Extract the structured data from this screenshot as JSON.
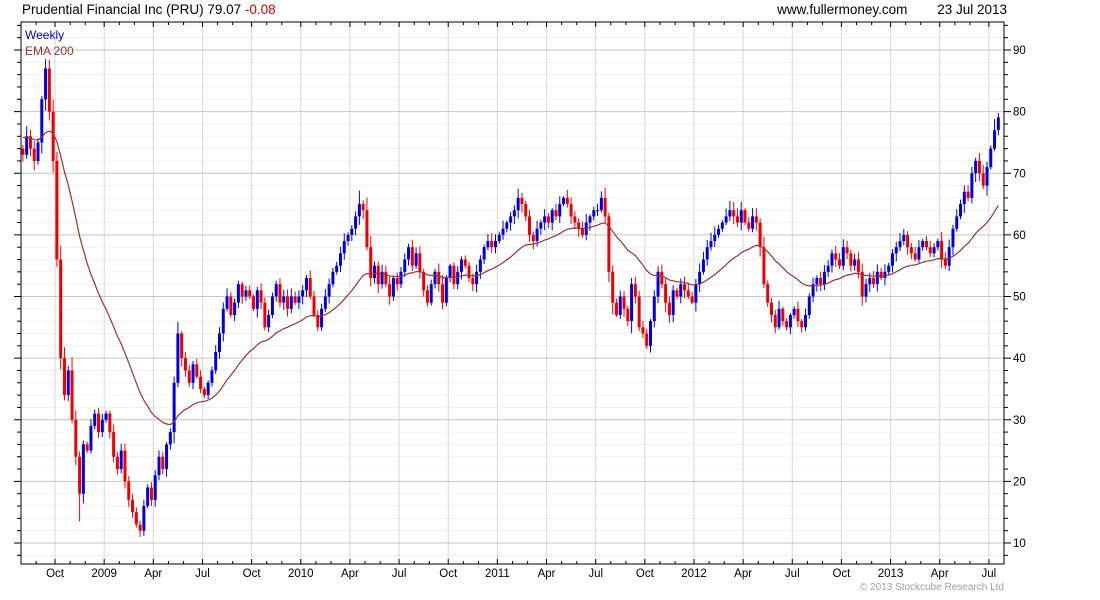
{
  "header": {
    "title": "Prudential Financial Inc (PRU)",
    "price": "79.07",
    "change": "-0.08",
    "site": "www.fullermoney.com",
    "date": "23 Jul 2013"
  },
  "footer": {
    "copyright": "© 2013 Stockcube Research Ltd"
  },
  "colors": {
    "up": "#0000dd",
    "down": "#ee0000",
    "ema": "#993333",
    "legend_weekly": "#0000cc",
    "negative_change": "#cc0000",
    "axis": "#000000",
    "grid_minor": "#efefef",
    "grid_major": "#c4c4c4",
    "grid_vertical": "#d8d8d8",
    "copyright_gray": "#9f9f9f"
  },
  "chart_data": {
    "type": "candlestick",
    "title": "Prudential Financial Inc (PRU) 79.07 -0.08",
    "timeframe_label": "Weekly",
    "ema_label": "EMA 200",
    "ema_period_weeks": 29,
    "ema_seed": 76,
    "weeks_total": 259,
    "first_open": 74,
    "y_axis": {
      "side": "right",
      "labels": [
        10,
        20,
        30,
        40,
        50,
        60,
        70,
        80,
        90
      ],
      "minor_step": 2,
      "top_value": 94.5,
      "bottom_value": 6.6
    },
    "x_axis": {
      "labels": [
        {
          "text": "Oct",
          "week": 9
        },
        {
          "text": "2009",
          "week": 22
        },
        {
          "text": "Apr",
          "week": 35
        },
        {
          "text": "Jul",
          "week": 48
        },
        {
          "text": "Oct",
          "week": 61
        },
        {
          "text": "2010",
          "week": 74
        },
        {
          "text": "Apr",
          "week": 87
        },
        {
          "text": "Jul",
          "week": 100
        },
        {
          "text": "Oct",
          "week": 113
        },
        {
          "text": "2011",
          "week": 126
        },
        {
          "text": "Apr",
          "week": 139
        },
        {
          "text": "Jul",
          "week": 152
        },
        {
          "text": "Oct",
          "week": 165
        },
        {
          "text": "2012",
          "week": 178
        },
        {
          "text": "Apr",
          "week": 191
        },
        {
          "text": "Jul",
          "week": 204
        },
        {
          "text": "Oct",
          "week": 217
        },
        {
          "text": "2013",
          "week": 230
        },
        {
          "text": "Apr",
          "week": 243
        },
        {
          "text": "Jul",
          "week": 256
        }
      ],
      "month_start_weeks": [
        0,
        4,
        9,
        13,
        17,
        22,
        26,
        30,
        35,
        39,
        43,
        48,
        52,
        56,
        61,
        65,
        69,
        74,
        78,
        82,
        87,
        91,
        95,
        100,
        104,
        108,
        113,
        117,
        121,
        126,
        130,
        134,
        139,
        143,
        147,
        152,
        156,
        160,
        165,
        169,
        173,
        178,
        182,
        186,
        191,
        195,
        199,
        204,
        208,
        212,
        217,
        221,
        225,
        230,
        234,
        238,
        243,
        247,
        251,
        256
      ]
    },
    "weekly_closes": [
      73,
      76,
      74,
      72,
      75,
      82,
      87,
      80,
      72,
      56,
      40,
      34,
      38,
      30,
      24,
      18,
      26,
      25,
      29,
      31,
      28,
      30,
      31,
      28,
      24,
      22,
      25,
      20,
      17,
      15,
      13,
      12,
      16,
      19,
      17,
      21,
      24,
      22,
      26,
      28,
      36,
      44,
      40,
      38,
      36,
      39,
      37,
      35,
      34,
      36,
      38,
      41,
      44,
      48,
      50,
      47,
      49,
      52,
      50,
      51,
      50,
      48,
      51,
      49,
      45,
      47,
      50,
      52,
      49,
      50,
      48,
      50,
      49,
      50,
      51,
      53,
      50,
      47,
      45,
      48,
      50,
      52,
      54,
      55,
      57,
      59,
      60,
      61,
      63,
      65,
      64,
      58,
      53,
      55,
      52,
      54,
      52,
      50,
      53,
      52,
      54,
      56,
      58,
      55,
      57,
      54,
      51,
      49,
      52,
      54,
      52,
      49,
      53,
      55,
      52,
      54,
      56,
      55,
      53,
      52,
      54,
      56,
      58,
      59,
      58,
      59,
      60,
      61,
      62,
      63,
      64,
      66,
      65,
      63,
      60,
      59,
      61,
      62,
      63,
      62,
      64,
      63,
      65,
      66,
      65,
      63,
      62,
      61,
      60,
      62,
      63,
      64,
      64,
      66,
      63,
      54,
      49,
      47,
      50,
      48,
      46,
      52,
      50,
      45,
      44,
      42,
      46,
      50,
      54,
      52,
      49,
      47,
      51,
      50,
      52,
      51,
      50,
      49,
      52,
      54,
      56,
      58,
      59,
      60,
      61,
      62,
      63,
      64,
      63,
      62,
      64,
      62,
      61,
      63,
      62,
      58,
      52,
      49,
      47,
      45,
      48,
      46,
      45,
      47,
      48,
      46,
      45,
      47,
      50,
      52,
      53,
      52,
      54,
      55,
      57,
      56,
      55,
      58,
      57,
      55,
      56,
      54,
      50,
      52,
      53,
      52,
      54,
      53,
      54,
      55,
      57,
      58,
      59,
      60,
      58,
      57,
      56,
      58,
      59,
      58,
      57,
      58,
      59,
      56,
      55,
      58,
      61,
      63,
      65,
      67,
      66,
      70,
      72,
      70,
      68,
      71,
      74,
      77,
      79.07
    ],
    "wick_overrides": {
      "high": {
        "6": 88.5,
        "89": 67.2,
        "131": 67.5,
        "187": 65.5,
        "258": 79.8
      },
      "low": {
        "15": 13.5,
        "31": 11,
        "165": 41.5,
        "222": 48.5
      }
    }
  }
}
